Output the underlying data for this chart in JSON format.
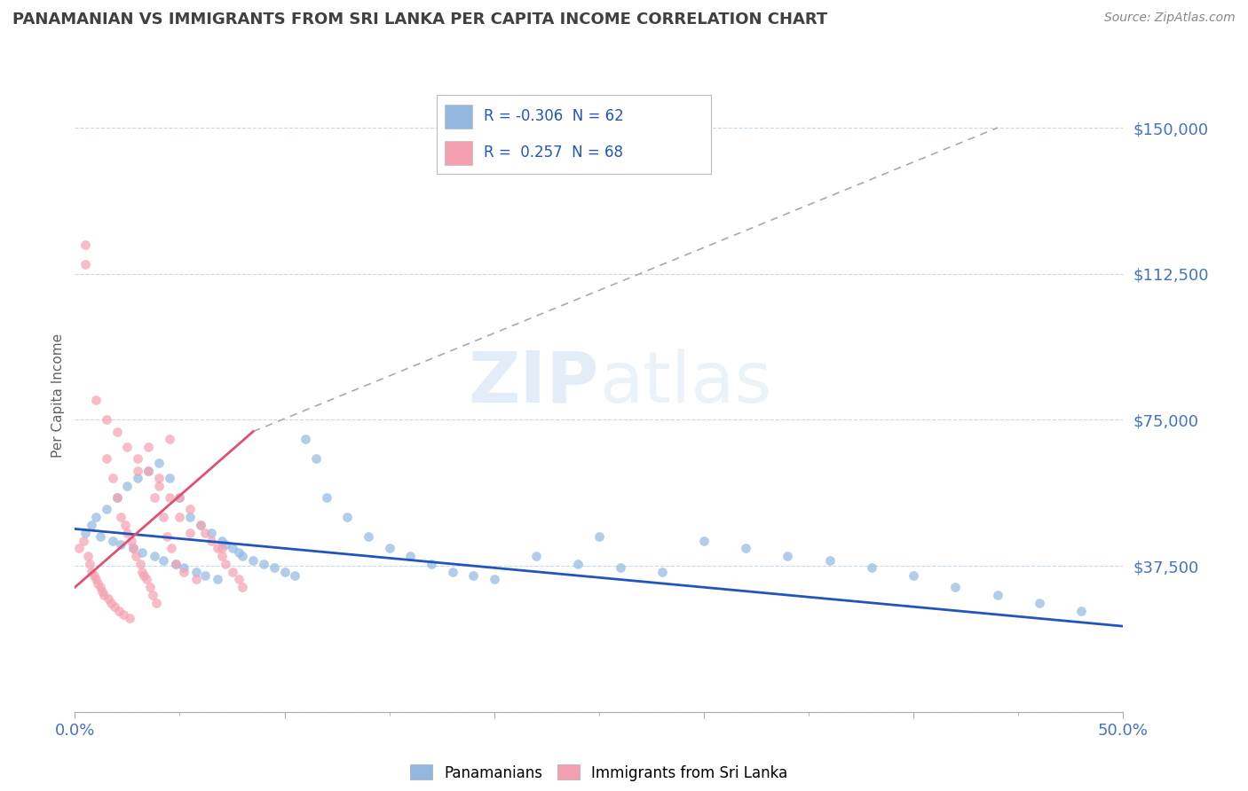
{
  "title": "PANAMANIAN VS IMMIGRANTS FROM SRI LANKA PER CAPITA INCOME CORRELATION CHART",
  "source_text": "Source: ZipAtlas.com",
  "ylabel": "Per Capita Income",
  "xmin": 0.0,
  "xmax": 0.5,
  "ymin": 0,
  "ymax": 162500,
  "yticks": [
    0,
    37500,
    75000,
    112500,
    150000
  ],
  "ytick_labels": [
    "",
    "$37,500",
    "$75,000",
    "$112,500",
    "$150,000"
  ],
  "xticks_major": [
    0.0,
    0.1,
    0.2,
    0.3,
    0.4,
    0.5
  ],
  "xticks_minor": [
    0.05,
    0.15,
    0.25,
    0.35,
    0.45
  ],
  "xtick_edge_labels": [
    "0.0%",
    "50.0%"
  ],
  "blue_color": "#92b8e0",
  "pink_color": "#f5a0b0",
  "blue_line_color": "#2255bb",
  "pink_line_color": "#e05070",
  "blue_R": -0.306,
  "blue_N": 62,
  "pink_R": 0.257,
  "pink_N": 68,
  "legend_label_blue": "Panamanians",
  "legend_label_pink": "Immigrants from Sri Lanka",
  "watermark_zip": "ZIP",
  "watermark_atlas": "atlas",
  "tick_label_color": "#4472C4",
  "grid_color": "#c8d8e8",
  "title_color": "#404040",
  "source_color": "#888888",
  "ylabel_color": "#606060",
  "blue_trend_x0": 0.0,
  "blue_trend_y0": 47000,
  "blue_trend_x1": 0.5,
  "blue_trend_y1": 22000,
  "pink_trend_x0": 0.0,
  "pink_trend_y0": 32000,
  "pink_trend_x1": 0.085,
  "pink_trend_y1": 72000,
  "diag_line_x0": 0.085,
  "diag_line_y0": 72000,
  "diag_line_x1": 0.44,
  "diag_line_y1": 150000,
  "blue_scatter_x": [
    0.005,
    0.008,
    0.01,
    0.012,
    0.015,
    0.018,
    0.02,
    0.022,
    0.025,
    0.028,
    0.03,
    0.032,
    0.035,
    0.038,
    0.04,
    0.042,
    0.045,
    0.048,
    0.05,
    0.052,
    0.055,
    0.058,
    0.06,
    0.062,
    0.065,
    0.068,
    0.07,
    0.072,
    0.075,
    0.078,
    0.08,
    0.085,
    0.09,
    0.095,
    0.1,
    0.105,
    0.11,
    0.115,
    0.12,
    0.13,
    0.14,
    0.15,
    0.16,
    0.17,
    0.18,
    0.19,
    0.2,
    0.22,
    0.24,
    0.25,
    0.26,
    0.28,
    0.3,
    0.32,
    0.34,
    0.36,
    0.38,
    0.4,
    0.42,
    0.44,
    0.46,
    0.48
  ],
  "blue_scatter_y": [
    46000,
    48000,
    50000,
    45000,
    52000,
    44000,
    55000,
    43000,
    58000,
    42000,
    60000,
    41000,
    62000,
    40000,
    64000,
    39000,
    60000,
    38000,
    55000,
    37000,
    50000,
    36000,
    48000,
    35000,
    46000,
    34000,
    44000,
    43000,
    42000,
    41000,
    40000,
    39000,
    38000,
    37000,
    36000,
    35000,
    70000,
    65000,
    55000,
    50000,
    45000,
    42000,
    40000,
    38000,
    36000,
    35000,
    34000,
    40000,
    38000,
    45000,
    37000,
    36000,
    44000,
    42000,
    40000,
    39000,
    37000,
    35000,
    32000,
    30000,
    28000,
    26000
  ],
  "pink_scatter_x": [
    0.002,
    0.004,
    0.005,
    0.006,
    0.007,
    0.008,
    0.009,
    0.01,
    0.011,
    0.012,
    0.013,
    0.014,
    0.015,
    0.016,
    0.017,
    0.018,
    0.019,
    0.02,
    0.021,
    0.022,
    0.023,
    0.024,
    0.025,
    0.026,
    0.027,
    0.028,
    0.029,
    0.03,
    0.031,
    0.032,
    0.033,
    0.034,
    0.035,
    0.036,
    0.037,
    0.038,
    0.039,
    0.04,
    0.042,
    0.044,
    0.045,
    0.046,
    0.048,
    0.05,
    0.052,
    0.055,
    0.058,
    0.06,
    0.062,
    0.065,
    0.068,
    0.07,
    0.072,
    0.075,
    0.078,
    0.08,
    0.005,
    0.01,
    0.015,
    0.02,
    0.025,
    0.03,
    0.035,
    0.04,
    0.045,
    0.05,
    0.055,
    0.07
  ],
  "pink_scatter_y": [
    42000,
    44000,
    120000,
    40000,
    38000,
    36000,
    35000,
    34000,
    33000,
    32000,
    31000,
    30000,
    65000,
    29000,
    28000,
    60000,
    27000,
    55000,
    26000,
    50000,
    25000,
    48000,
    46000,
    24000,
    44000,
    42000,
    40000,
    62000,
    38000,
    36000,
    35000,
    34000,
    68000,
    32000,
    30000,
    55000,
    28000,
    60000,
    50000,
    45000,
    70000,
    42000,
    38000,
    55000,
    36000,
    52000,
    34000,
    48000,
    46000,
    44000,
    42000,
    40000,
    38000,
    36000,
    34000,
    32000,
    115000,
    80000,
    75000,
    72000,
    68000,
    65000,
    62000,
    58000,
    55000,
    50000,
    46000,
    42000
  ]
}
